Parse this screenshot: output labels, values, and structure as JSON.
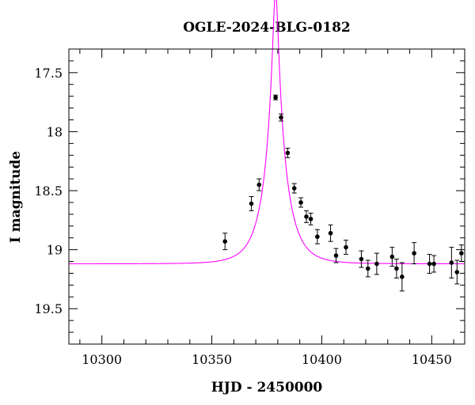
{
  "chart_data": {
    "type": "scatter",
    "title": "OGLE-2024-BLG-0182",
    "xlabel": "HJD - 2450000",
    "ylabel": "I magnitude",
    "xlim": [
      10285,
      10465
    ],
    "ylim": [
      19.8,
      17.3
    ],
    "y_inverted": true,
    "xticks": [
      10300,
      10350,
      10400,
      10450
    ],
    "yticks": [
      17.5,
      18,
      18.5,
      19,
      19.5
    ],
    "x_tick_labels": [
      "10300",
      "10350",
      "10400",
      "10450"
    ],
    "y_tick_labels": [
      "17.5",
      "18",
      "18.5",
      "19",
      "19.5"
    ],
    "grid": false,
    "colors": {
      "model": "#ff00ff",
      "points": "#000000",
      "axes": "#000000"
    },
    "model": {
      "type": "microlensing-lightcurve",
      "t0": 10379,
      "u0": 0.12,
      "tE": 9.5,
      "baseline": 19.12
    },
    "series": [
      {
        "points": [
          {
            "x": 10356.0,
            "y": 18.93,
            "err": 0.07
          },
          {
            "x": 10368.0,
            "y": 18.61,
            "err": 0.06
          },
          {
            "x": 10371.5,
            "y": 18.45,
            "err": 0.05
          },
          {
            "x": 10379.0,
            "y": 17.71,
            "err": 0.02
          },
          {
            "x": 10381.5,
            "y": 17.88,
            "err": 0.03
          },
          {
            "x": 10384.5,
            "y": 18.18,
            "err": 0.04
          },
          {
            "x": 10387.5,
            "y": 18.48,
            "err": 0.04
          },
          {
            "x": 10390.5,
            "y": 18.6,
            "err": 0.04
          },
          {
            "x": 10393.0,
            "y": 18.72,
            "err": 0.05
          },
          {
            "x": 10395.0,
            "y": 18.74,
            "err": 0.05
          },
          {
            "x": 10398.0,
            "y": 18.89,
            "err": 0.06
          },
          {
            "x": 10404.0,
            "y": 18.86,
            "err": 0.07
          },
          {
            "x": 10406.5,
            "y": 19.05,
            "err": 0.06
          },
          {
            "x": 10411.0,
            "y": 18.98,
            "err": 0.06
          },
          {
            "x": 10418.0,
            "y": 19.08,
            "err": 0.07
          },
          {
            "x": 10421.0,
            "y": 19.16,
            "err": 0.07
          },
          {
            "x": 10425.0,
            "y": 19.12,
            "err": 0.09
          },
          {
            "x": 10432.0,
            "y": 19.06,
            "err": 0.08
          },
          {
            "x": 10434.0,
            "y": 19.16,
            "err": 0.08
          },
          {
            "x": 10436.5,
            "y": 19.23,
            "err": 0.12
          },
          {
            "x": 10442.0,
            "y": 19.03,
            "err": 0.09
          },
          {
            "x": 10449.0,
            "y": 19.12,
            "err": 0.08
          },
          {
            "x": 10451.0,
            "y": 19.12,
            "err": 0.07
          },
          {
            "x": 10459.0,
            "y": 19.11,
            "err": 0.13
          },
          {
            "x": 10461.5,
            "y": 19.19,
            "err": 0.1
          },
          {
            "x": 10463.5,
            "y": 19.03,
            "err": 0.07
          }
        ]
      }
    ]
  }
}
